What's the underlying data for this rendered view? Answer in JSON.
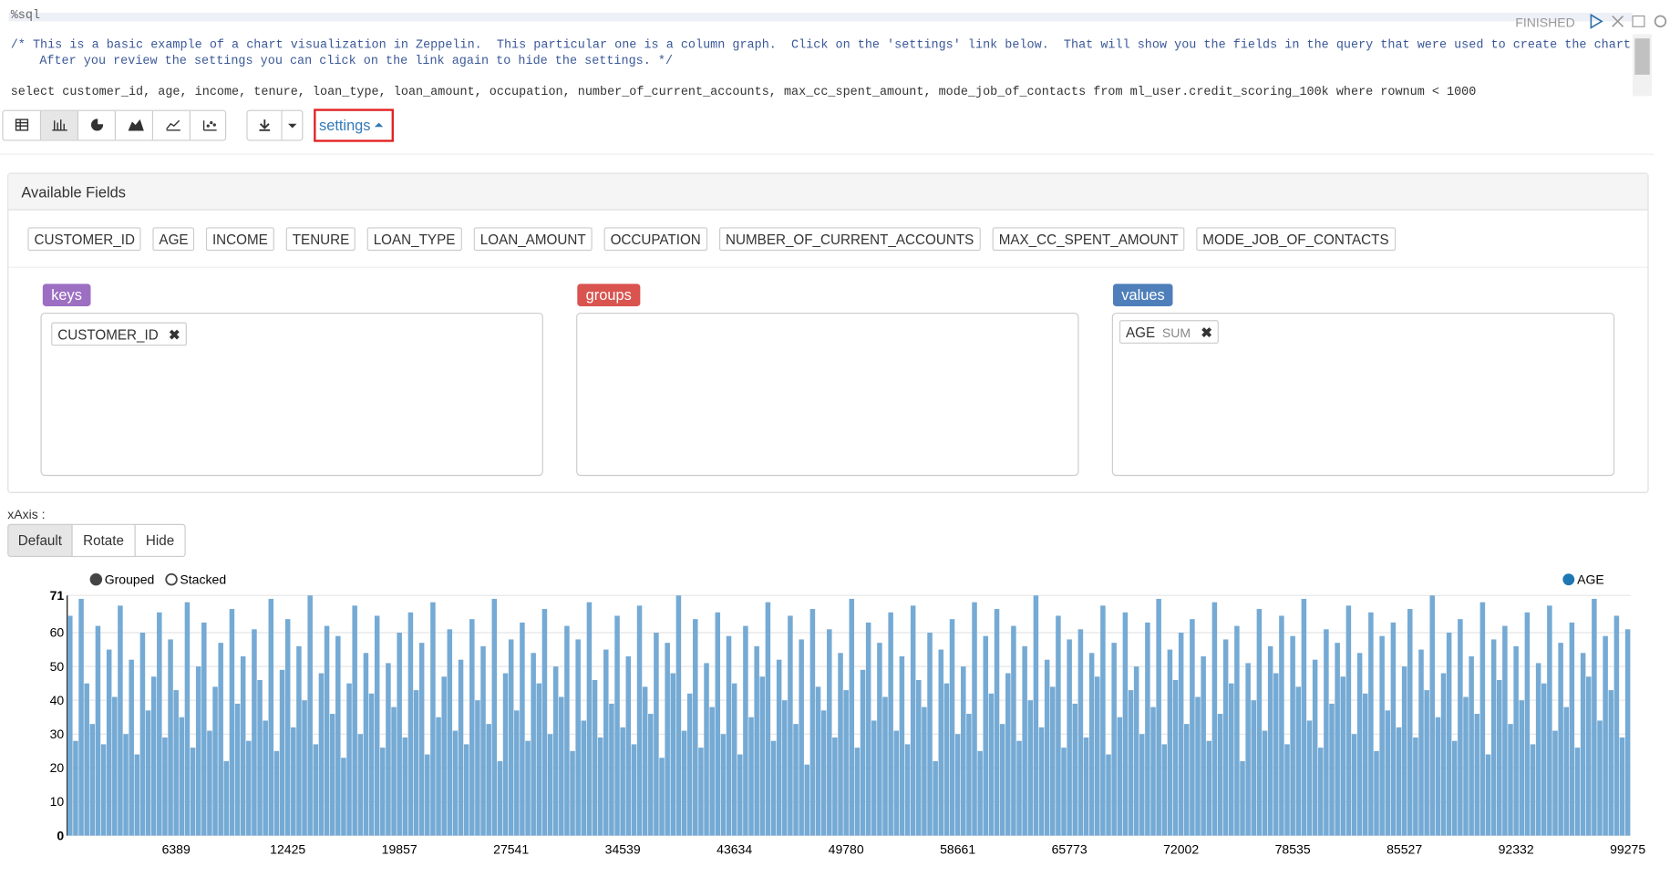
{
  "paragraph": {
    "interpreter": "%sql",
    "status": "FINISHED",
    "comment_1": "/* This is a basic example of a chart visualization in Zeppelin.  This particular one is a column graph.  Click on the 'settings' link below.  That will show you the fields in the query that were used to create the chart.",
    "comment_2": "After you review the settings you can click on the link again to hide the settings. */",
    "query": "select customer_id, age, income, tenure, loan_type, loan_amount, occupation, number_of_current_accounts, max_cc_spent_amount, mode_job_of_contacts from ml_user.credit_scoring_100k where rownum < 1000"
  },
  "settings_link": "settings",
  "available_fields": {
    "title": "Available Fields",
    "fields": [
      "CUSTOMER_ID",
      "AGE",
      "INCOME",
      "TENURE",
      "LOAN_TYPE",
      "LOAN_AMOUNT",
      "OCCUPATION",
      "NUMBER_OF_CURRENT_ACCOUNTS",
      "MAX_CC_SPENT_AMOUNT",
      "MODE_JOB_OF_CONTACTS"
    ]
  },
  "keys": {
    "label": "keys",
    "items": [
      "CUSTOMER_ID"
    ]
  },
  "groups": {
    "label": "groups"
  },
  "values_box": {
    "label": "values",
    "field": "AGE",
    "agg": "SUM"
  },
  "xaxis": {
    "label": "xAxis :",
    "options": [
      "Default",
      "Rotate",
      "Hide"
    ]
  },
  "chart_data": {
    "type": "bar",
    "modes": [
      "Grouped",
      "Stacked"
    ],
    "ylim": [
      0,
      71
    ],
    "yticks": [
      0,
      10,
      20,
      30,
      40,
      50,
      60,
      71
    ],
    "grid": true,
    "categories": [
      null,
      null,
      null,
      null,
      null,
      null,
      null,
      null,
      null,
      null,
      null,
      null,
      null,
      null,
      null,
      null,
      null,
      null,
      null,
      "6389",
      null,
      null,
      null,
      null,
      null,
      null,
      null,
      null,
      null,
      null,
      null,
      null,
      null,
      null,
      null,
      null,
      null,
      null,
      null,
      "12425",
      null,
      null,
      null,
      null,
      null,
      null,
      null,
      null,
      null,
      null,
      null,
      null,
      null,
      null,
      null,
      null,
      null,
      null,
      null,
      "19857",
      null,
      null,
      null,
      null,
      null,
      null,
      null,
      null,
      null,
      null,
      null,
      null,
      null,
      null,
      null,
      null,
      null,
      null,
      null,
      "27541",
      null,
      null,
      null,
      null,
      null,
      null,
      null,
      null,
      null,
      null,
      null,
      null,
      null,
      null,
      null,
      null,
      null,
      null,
      null,
      "34539",
      null,
      null,
      null,
      null,
      null,
      null,
      null,
      null,
      null,
      null,
      null,
      null,
      null,
      null,
      null,
      null,
      null,
      null,
      null,
      "43634",
      null,
      null,
      null,
      null,
      null,
      null,
      null,
      null,
      null,
      null,
      null,
      null,
      null,
      null,
      null,
      null,
      null,
      null,
      null,
      "49780",
      null,
      null,
      null,
      null,
      null,
      null,
      null,
      null,
      null,
      null,
      null,
      null,
      null,
      null,
      null,
      null,
      null,
      null,
      null,
      "58661",
      null,
      null,
      null,
      null,
      null,
      null,
      null,
      null,
      null,
      null,
      null,
      null,
      null,
      null,
      null,
      null,
      null,
      null,
      null,
      "65773",
      null,
      null,
      null,
      null,
      null,
      null,
      null,
      null,
      null,
      null,
      null,
      null,
      null,
      null,
      null,
      null,
      null,
      null,
      null,
      "72002",
      null,
      null,
      null,
      null,
      null,
      null,
      null,
      null,
      null,
      null,
      null,
      null,
      null,
      null,
      null,
      null,
      null,
      null,
      null,
      "78535",
      null,
      null,
      null,
      null,
      null,
      null,
      null,
      null,
      null,
      null,
      null,
      null,
      null,
      null,
      null,
      null,
      null,
      null,
      null,
      "85527",
      null,
      null,
      null,
      null,
      null,
      null,
      null,
      null,
      null,
      null,
      null,
      null,
      null,
      null,
      null,
      null,
      null,
      null,
      null,
      "92332",
      null,
      null,
      null,
      null,
      null,
      null,
      null,
      null,
      null,
      null,
      null,
      null,
      null,
      null,
      null,
      null,
      null,
      null,
      null,
      "99275"
    ],
    "series": [
      {
        "name": "AGE",
        "color": "#75aad4",
        "values": [
          65,
          28,
          70,
          45,
          33,
          62,
          27,
          55,
          41,
          68,
          30,
          52,
          24,
          60,
          37,
          47,
          66,
          29,
          58,
          43,
          35,
          69,
          26,
          50,
          63,
          31,
          44,
          57,
          22,
          67,
          39,
          53,
          28,
          61,
          46,
          34,
          70,
          25,
          49,
          64,
          32,
          56,
          40,
          71,
          27,
          48,
          62,
          36,
          59,
          23,
          45,
          68,
          30,
          54,
          42,
          65,
          26,
          51,
          38,
          60,
          29,
          66,
          43,
          57,
          24,
          69,
          35,
          47,
          61,
          31,
          52,
          27,
          64,
          40,
          56,
          33,
          70,
          22,
          48,
          58,
          37,
          63,
          28,
          54,
          45,
          67,
          30,
          50,
          41,
          62,
          25,
          58,
          34,
          69,
          46,
          29,
          55,
          39,
          65,
          32,
          53,
          27,
          68,
          44,
          36,
          60,
          23,
          57,
          48,
          71,
          31,
          42,
          64,
          26,
          51,
          38,
          66,
          30,
          59,
          45,
          24,
          62,
          35,
          56,
          47,
          69,
          28,
          52,
          40,
          65,
          33,
          58,
          21,
          67,
          44,
          37,
          61,
          29,
          54,
          43,
          70,
          26,
          49,
          63,
          34,
          57,
          41,
          66,
          31,
          53,
          27,
          68,
          46,
          38,
          60,
          22,
          55,
          45,
          64,
          30,
          50,
          36,
          69,
          25,
          59,
          42,
          67,
          33,
          48,
          62,
          28,
          56,
          40,
          71,
          32,
          52,
          44,
          65,
          26,
          58,
          39,
          61,
          29,
          54,
          47,
          68,
          24,
          57,
          35,
          66,
          43,
          50,
          30,
          63,
          38,
          70,
          27,
          55,
          46,
          60,
          33,
          64,
          41,
          53,
          28,
          69,
          36,
          58,
          45,
          62,
          22,
          51,
          40,
          67,
          31,
          56,
          48,
          65,
          27,
          59,
          44,
          70,
          34,
          52,
          26,
          61,
          39,
          57,
          47,
          68,
          30,
          54,
          42,
          66,
          25,
          59,
          37,
          63,
          32,
          50,
          67,
          29,
          55,
          43,
          71,
          35,
          48,
          60,
          28,
          64,
          41,
          53,
          36,
          69,
          24,
          58,
          46,
          62,
          33,
          56,
          40,
          66,
          27,
          51,
          45,
          68,
          31,
          57,
          38,
          63,
          26,
          54,
          47,
          70,
          34,
          59,
          43,
          65,
          29,
          61
        ]
      }
    ]
  }
}
